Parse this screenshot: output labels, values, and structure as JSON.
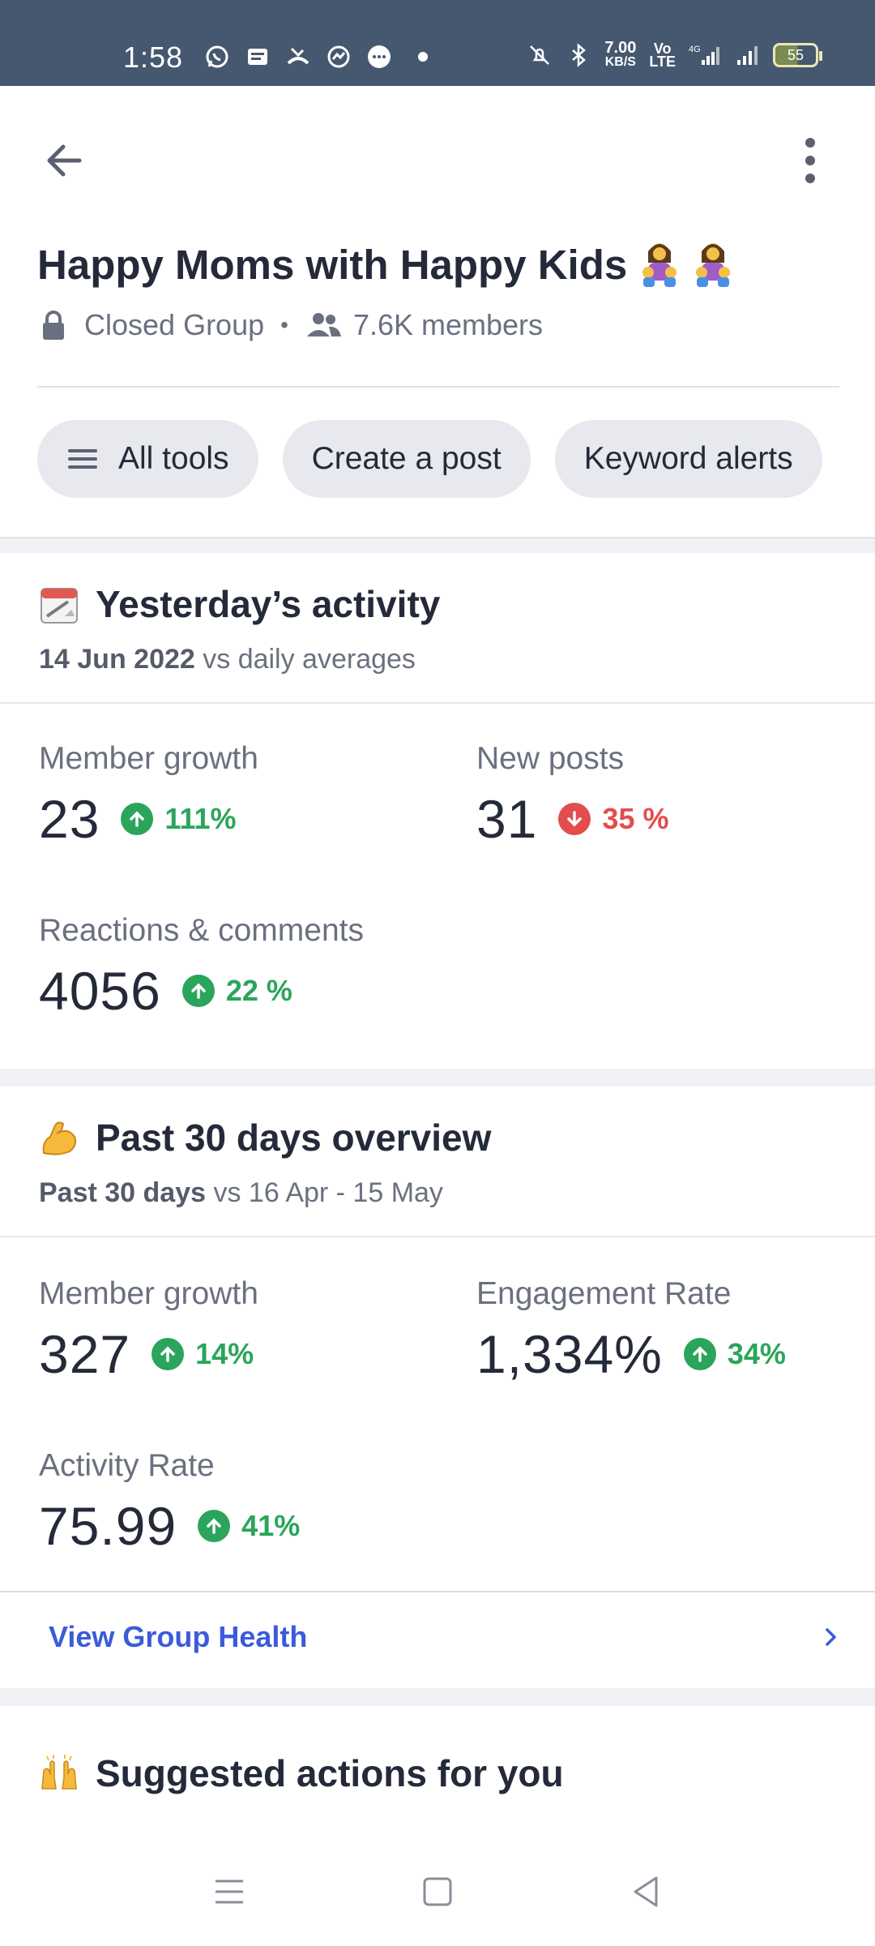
{
  "status_bar": {
    "time": "1:58",
    "net_speed_value": "7.00",
    "net_speed_unit": "KB/S",
    "volte_top": "Vo",
    "volte_bottom": "LTE",
    "network": "4G",
    "battery": "55",
    "icons": [
      "whatsapp-icon",
      "message-icon",
      "missed-call-icon",
      "messenger-icon",
      "chat-bubble-icon",
      "mute-icon",
      "bluetooth-icon",
      "signal-icon"
    ]
  },
  "header": {
    "back_icon": "arrow-left-icon",
    "more_icon": "more-vertical-icon",
    "group_name": "Happy Moms with Happy Kids",
    "privacy_icon": "lock-icon",
    "privacy": "Closed Group",
    "members_icon": "people-icon",
    "members": "7.6K members"
  },
  "chips": [
    {
      "label": "All tools",
      "icon": "menu-icon"
    },
    {
      "label": "Create a post"
    },
    {
      "label": "Keyword alerts"
    }
  ],
  "yesterday": {
    "emoji": "calendar-icon",
    "title": "Yesterday’s activity",
    "subtitle_bold": "14 Jun 2022",
    "subtitle_rest": " vs daily averages",
    "stats": [
      {
        "label": "Member growth",
        "value": "23",
        "change": "111%",
        "direction": "up"
      },
      {
        "label": "New posts",
        "value": "31",
        "change": "35 %",
        "direction": "down"
      },
      {
        "label": "Reactions & comments",
        "value": "4056",
        "change": "22 %",
        "direction": "up"
      }
    ]
  },
  "past30": {
    "emoji": "flexed-biceps-icon",
    "title": "Past 30 days overview",
    "subtitle_bold": "Past 30 days",
    "subtitle_rest": " vs 16 Apr - 15 May",
    "stats": [
      {
        "label": "Member growth",
        "value": "327",
        "change": "14%",
        "direction": "up"
      },
      {
        "label": "Engagement Rate",
        "value": "1,334%",
        "change": "34%",
        "direction": "up"
      },
      {
        "label": "Activity Rate",
        "value": "75.99",
        "change": "41%",
        "direction": "up"
      }
    ]
  },
  "group_health_link": {
    "label": "View Group Health",
    "icon": "chevron-right-icon"
  },
  "suggested": {
    "emoji": "raising-hands-icon",
    "title": "Suggested actions for you"
  },
  "nav_bar": {
    "icons": [
      "recent-apps-icon",
      "home-icon",
      "back-triangle-icon"
    ]
  },
  "colors": {
    "status_bar": "#46586f",
    "up": "#2aa55b",
    "down": "#e24d4d",
    "link": "#3b5bd9",
    "chip_bg": "#e8e9ee"
  }
}
